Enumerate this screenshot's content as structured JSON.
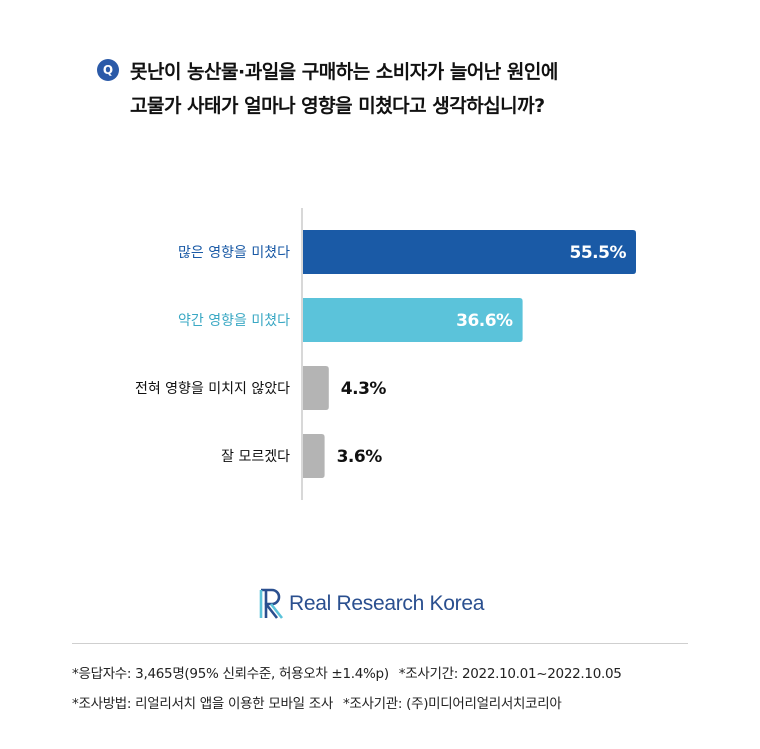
{
  "question": {
    "badge": "Q",
    "line1": "못난이 농산물·과일을 구매하는 소비자가 늘어난 원인에",
    "line2": "고물가 사태가 얼마나 영향을 미쳤다고 생각하십니까?"
  },
  "chart_data": {
    "type": "bar",
    "orientation": "horizontal",
    "categories": [
      "많은 영향을 미쳤다",
      "약간 영향을 미쳤다",
      "전혀 영향을 미치지 않았다",
      "잘 모르겠다"
    ],
    "values": [
      55.5,
      36.6,
      4.3,
      3.6
    ],
    "value_labels": [
      "55.5%",
      "36.6%",
      "4.3%",
      "3.6%"
    ],
    "colors": [
      "#1a5aa6",
      "#5bc3da",
      "#b4b4b4",
      "#b4b4b4"
    ],
    "label_colors": [
      "#1a5aa6",
      "#3aa8c4",
      "#111111",
      "#111111"
    ],
    "value_label_position": [
      "inside",
      "inside",
      "outside",
      "outside"
    ],
    "xlim": [
      0,
      60
    ],
    "grid": false,
    "legend": "none"
  },
  "logo": {
    "text": "Real Research Korea",
    "icon": "rr-logo-icon",
    "color": "#2a4f8f"
  },
  "footnotes": {
    "line1": [
      "*응답자수: 3,465명(95% 신뢰수준, 허용오차 ±1.4%p)",
      "*조사기간: 2022.10.01~2022.10.05"
    ],
    "line2": [
      "*조사방법: 리얼리서치 앱을 이용한 모바일 조사",
      "*조사기관: (주)미디어리얼리서치코리아"
    ]
  }
}
